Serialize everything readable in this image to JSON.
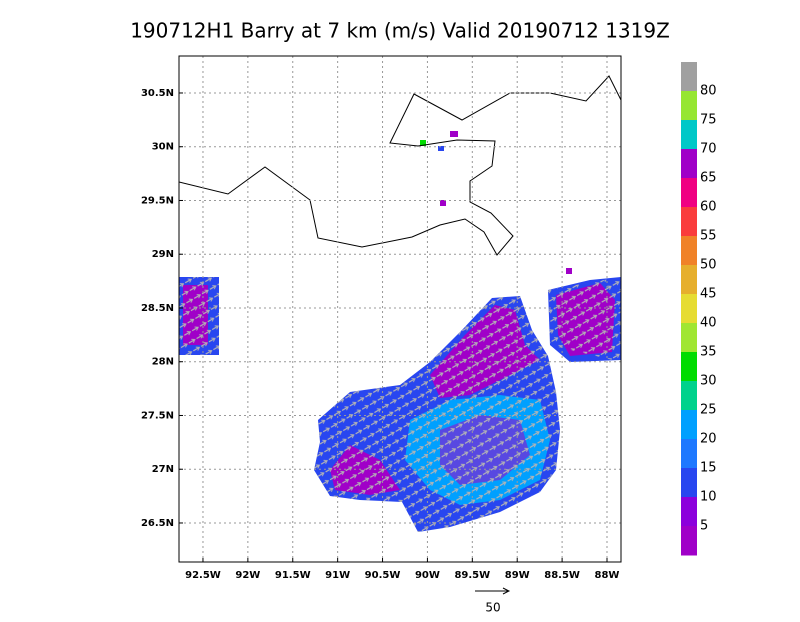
{
  "map": {
    "title": "190712H1 Barry at 7 km (m/s) Valid 20190712 1319Z",
    "xlim": [
      -92.767,
      -87.844
    ],
    "ylim": [
      26.137,
      30.844
    ],
    "xticks": [
      {
        "value": -92.5,
        "label": "92.5W"
      },
      {
        "value": -92,
        "label": "92W"
      },
      {
        "value": -91.5,
        "label": "91.5W"
      },
      {
        "value": -91,
        "label": "91W"
      },
      {
        "value": -90.5,
        "label": "90.5W"
      },
      {
        "value": -90,
        "label": "90W"
      },
      {
        "value": -89.5,
        "label": "89.5W"
      },
      {
        "value": -89,
        "label": "89W"
      },
      {
        "value": -88.5,
        "label": "88.5W"
      },
      {
        "value": -88,
        "label": "88W"
      }
    ],
    "yticks": [
      {
        "value": 26.5,
        "label": "26.5N"
      },
      {
        "value": 27,
        "label": "27N"
      },
      {
        "value": 27.5,
        "label": "27.5N"
      },
      {
        "value": 28,
        "label": "28N"
      },
      {
        "value": 28.5,
        "label": "28.5N"
      },
      {
        "value": 29,
        "label": "29N"
      },
      {
        "value": 29.5,
        "label": "29.5N"
      },
      {
        "value": 30,
        "label": "30N"
      },
      {
        "value": 30.5,
        "label": "30.5N"
      }
    ],
    "grid": true,
    "colorbar": {
      "labels": [
        80,
        75,
        70,
        65,
        60,
        55,
        50,
        45,
        40,
        35,
        30,
        25,
        20,
        15,
        10,
        5
      ],
      "colors": [
        "#a0a0a0",
        "#96e632",
        "#00c8c8",
        "#a000c8",
        "#f00082",
        "#fa3c3c",
        "#f08228",
        "#e6af2d",
        "#e6dc32",
        "#a0e632",
        "#00dc00",
        "#00d28c",
        "#00a0ff",
        "#1e78ff",
        "#2846f0",
        "#8c00dc",
        "#a000c8"
      ]
    },
    "reference_vector": 50
  }
}
